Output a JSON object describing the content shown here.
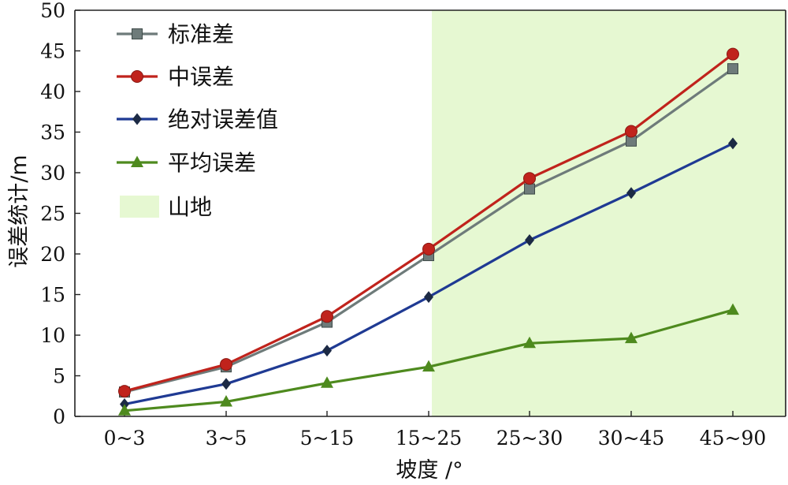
{
  "chart_data": {
    "type": "line",
    "xlabel": "坡度 /°",
    "ylabel": "误差统计/m",
    "ylim": [
      0,
      50
    ],
    "yticks": [
      0,
      5,
      10,
      15,
      20,
      25,
      30,
      35,
      40,
      45,
      50
    ],
    "categories": [
      "0~3",
      "3~5",
      "5~15",
      "15~25",
      "25~30",
      "30~45",
      "45~90"
    ],
    "grid": false,
    "legend_position": "top-left",
    "shaded_region": {
      "label": "山地",
      "from_category": "15~25",
      "to": "right edge",
      "color": "#e6f8d2"
    },
    "series": [
      {
        "name": "标准差",
        "color": "#6e7b7a",
        "marker": "square",
        "values": [
          3.0,
          6.1,
          11.6,
          19.8,
          28.0,
          33.9,
          42.8
        ]
      },
      {
        "name": "中误差",
        "color": "#c0231c",
        "marker": "circle",
        "values": [
          3.1,
          6.4,
          12.3,
          20.6,
          29.3,
          35.1,
          44.6
        ]
      },
      {
        "name": "绝对误差值",
        "color": "#1f3a93",
        "marker": "diamond",
        "values": [
          1.5,
          4.0,
          8.1,
          14.7,
          21.7,
          27.5,
          33.6
        ]
      },
      {
        "name": "平均误差",
        "color": "#4e8a1e",
        "marker": "triangle",
        "values": [
          0.7,
          1.8,
          4.1,
          6.1,
          9.0,
          9.6,
          13.1
        ]
      }
    ]
  }
}
